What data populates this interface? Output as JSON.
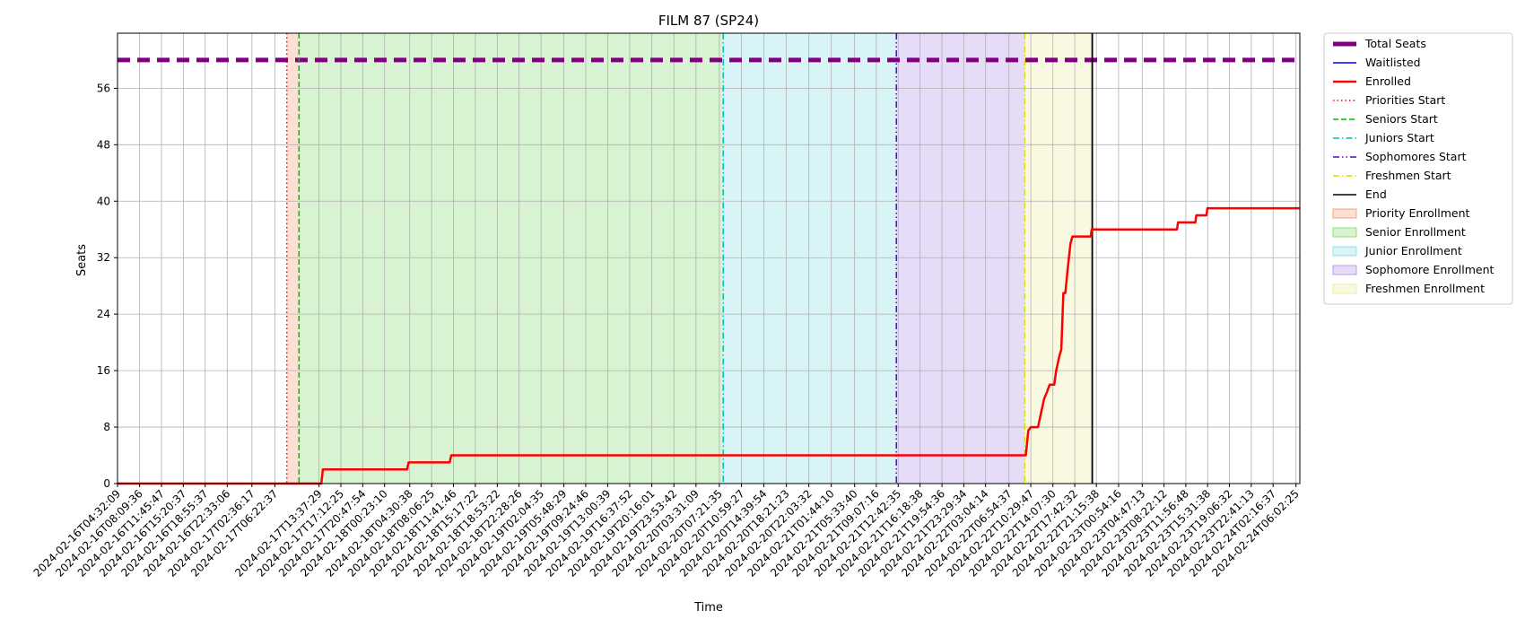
{
  "chart_data": {
    "type": "line",
    "title": "FILM 87 (SP24)",
    "xlabel": "Time",
    "ylabel": "Seats",
    "x_start": "2024-02-16T04:32:09",
    "x_end": "2024-02-24T06:40:00",
    "ylim": [
      0,
      60
    ],
    "yticks": [
      0,
      8,
      16,
      24,
      32,
      40,
      48,
      56
    ],
    "grid": true,
    "legend_position": "outside-right",
    "xtick_labels": [
      "2024-02-16T04:32:09",
      "2024-02-16T08:09:36",
      "2024-02-16T11:45:47",
      "2024-02-16T15:20:37",
      "2024-02-16T18:55:37",
      "2024-02-16T22:33:06",
      "2024-02-17T02:36:17",
      "2024-02-17T06:22:37",
      "2024-02-17T13:37:29",
      "2024-02-17T17:12:25",
      "2024-02-17T20:47:54",
      "2024-02-18T00:23:10",
      "2024-02-18T04:30:38",
      "2024-02-18T08:06:25",
      "2024-02-18T11:41:46",
      "2024-02-18T15:17:22",
      "2024-02-18T18:53:22",
      "2024-02-18T22:28:26",
      "2024-02-19T02:04:35",
      "2024-02-19T05:48:29",
      "2024-02-19T09:24:46",
      "2024-02-19T13:00:39",
      "2024-02-19T16:37:52",
      "2024-02-19T20:16:01",
      "2024-02-19T23:53:42",
      "2024-02-20T03:31:09",
      "2024-02-20T07:21:35",
      "2024-02-20T10:59:27",
      "2024-02-20T14:39:54",
      "2024-02-20T18:21:23",
      "2024-02-20T22:03:32",
      "2024-02-21T01:44:10",
      "2024-02-21T05:33:40",
      "2024-02-21T09:07:16",
      "2024-02-21T12:42:35",
      "2024-02-21T16:18:38",
      "2024-02-21T19:54:36",
      "2024-02-21T23:29:34",
      "2024-02-22T03:04:14",
      "2024-02-22T06:54:37",
      "2024-02-22T10:29:47",
      "2024-02-22T14:07:30",
      "2024-02-22T17:42:32",
      "2024-02-22T21:15:38",
      "2024-02-23T00:54:16",
      "2024-02-23T04:47:13",
      "2024-02-23T08:22:12",
      "2024-02-23T11:56:48",
      "2024-02-23T15:31:38",
      "2024-02-23T19:06:32",
      "2024-02-23T22:41:13",
      "2024-02-24T02:16:37",
      "2024-02-24T06:02:25"
    ],
    "series": [
      {
        "name": "Total Seats",
        "color": "#800080",
        "style": "dashed-thick",
        "value": 60
      },
      {
        "name": "Waitlisted",
        "color": "#0000ff",
        "style": "solid",
        "points": []
      },
      {
        "name": "Enrolled",
        "color": "#ff0000",
        "style": "solid",
        "points": [
          [
            "2024-02-16T04:32:09",
            0
          ],
          [
            "2024-02-17T14:00:00",
            0
          ],
          [
            "2024-02-17T14:15:00",
            2
          ],
          [
            "2024-02-18T04:05:00",
            2
          ],
          [
            "2024-02-18T04:20:00",
            3
          ],
          [
            "2024-02-18T11:05:00",
            3
          ],
          [
            "2024-02-18T11:20:00",
            4
          ],
          [
            "2024-02-22T09:40:00",
            4
          ],
          [
            "2024-02-22T10:05:00",
            7.5
          ],
          [
            "2024-02-22T10:30:00",
            8
          ],
          [
            "2024-02-22T11:40:00",
            8
          ],
          [
            "2024-02-22T12:10:00",
            10
          ],
          [
            "2024-02-22T12:40:00",
            12
          ],
          [
            "2024-02-22T13:10:00",
            13
          ],
          [
            "2024-02-22T13:35:00",
            14
          ],
          [
            "2024-02-22T14:20:00",
            14
          ],
          [
            "2024-02-22T14:40:00",
            16
          ],
          [
            "2024-02-22T15:10:00",
            18
          ],
          [
            "2024-02-22T15:30:00",
            19
          ],
          [
            "2024-02-22T15:50:00",
            27
          ],
          [
            "2024-02-22T16:10:00",
            27
          ],
          [
            "2024-02-22T16:30:00",
            30
          ],
          [
            "2024-02-22T17:00:00",
            34
          ],
          [
            "2024-02-22T17:20:00",
            35
          ],
          [
            "2024-02-22T20:20:00",
            35
          ],
          [
            "2024-02-22T20:30:00",
            36
          ],
          [
            "2024-02-23T10:30:00",
            36
          ],
          [
            "2024-02-23T10:40:00",
            37
          ],
          [
            "2024-02-23T13:30:00",
            37
          ],
          [
            "2024-02-23T13:40:00",
            38
          ],
          [
            "2024-02-23T15:20:00",
            38
          ],
          [
            "2024-02-23T15:30:00",
            39
          ],
          [
            "2024-02-24T06:40:00",
            39
          ]
        ]
      }
    ],
    "vertical_lines": [
      {
        "name": "Priorities Start",
        "time": "2024-02-17T08:20:00",
        "color": "#ff0000",
        "style": "dotted"
      },
      {
        "name": "Seniors Start",
        "time": "2024-02-17T10:20:00",
        "color": "#00bb00",
        "style": "dashed"
      },
      {
        "name": "Juniors Start",
        "time": "2024-02-20T08:00:00",
        "color": "#00bfbf",
        "style": "dashdot"
      },
      {
        "name": "Sophomores Start",
        "time": "2024-02-21T12:25:00",
        "color": "#5500dd",
        "style": "dashdotdot"
      },
      {
        "name": "Freshmen Start",
        "time": "2024-02-22T09:30:00",
        "color": "#dddd00",
        "style": "dashdot"
      },
      {
        "name": "End",
        "time": "2024-02-22T20:35:00",
        "color": "#000000",
        "style": "solid"
      }
    ],
    "regions": [
      {
        "name": "Priority Enrollment",
        "start": "2024-02-17T08:20:00",
        "end": "2024-02-17T10:20:00",
        "color": "#f4a582"
      },
      {
        "name": "Senior Enrollment",
        "start": "2024-02-17T10:20:00",
        "end": "2024-02-20T08:00:00",
        "color": "#8fdc7a"
      },
      {
        "name": "Junior Enrollment",
        "start": "2024-02-20T08:00:00",
        "end": "2024-02-21T12:25:00",
        "color": "#8ee0e6"
      },
      {
        "name": "Sophomore Enrollment",
        "start": "2024-02-21T12:25:00",
        "end": "2024-02-22T09:30:00",
        "color": "#b89be8"
      },
      {
        "name": "Freshmen Enrollment",
        "start": "2024-02-22T09:30:00",
        "end": "2024-02-22T20:35:00",
        "color": "#eeeea8"
      }
    ]
  }
}
